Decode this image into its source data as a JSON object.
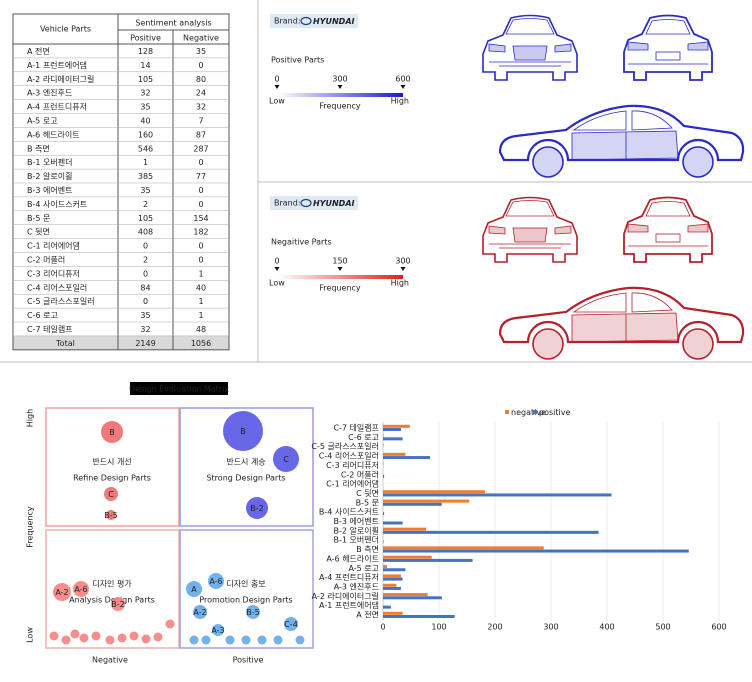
{
  "table": {
    "header": {
      "parts": "Vehicle Parts",
      "group": "Sentiment analysis",
      "positive": "Positive",
      "negative": "Negative"
    },
    "rows": [
      [
        "A 전면",
        128,
        35
      ],
      [
        "A-1 프런트에어댐",
        14,
        0
      ],
      [
        "A-2 라디에이터그릴",
        105,
        80
      ],
      [
        "A-3 엔진후드",
        32,
        24
      ],
      [
        "A-4 프런트디퓨저",
        35,
        32
      ],
      [
        "A-5 로고",
        40,
        7
      ],
      [
        "A-6 헤드라이트",
        160,
        87
      ],
      [
        "B 측면",
        546,
        287
      ],
      [
        "B-1 오버펜더",
        1,
        0
      ],
      [
        "B-2 알로이휠",
        385,
        77
      ],
      [
        "B-3 에어벤트",
        35,
        0
      ],
      [
        "B-4 사이드스커트",
        2,
        0
      ],
      [
        "B-5 문",
        105,
        154
      ],
      [
        "C 뒷면",
        408,
        182
      ],
      [
        "C-1 리어에어댐",
        0,
        0
      ],
      [
        "C-2 머플러",
        2,
        0
      ],
      [
        "C-3 리어디퓨저",
        0,
        1
      ],
      [
        "C-4 리어스포일러",
        84,
        40
      ],
      [
        "C-5 글라스스포일러",
        0,
        1
      ],
      [
        "C-6 로고",
        35,
        1
      ],
      [
        "C-7 테일램프",
        32,
        48
      ]
    ],
    "total": [
      "Total",
      2149,
      1056
    ]
  },
  "panels": [
    {
      "brand": "Brand:",
      "logo": "HYUNDAI",
      "title": "Positive Parts",
      "ticks": [
        0,
        300,
        600
      ],
      "low": "Low",
      "high": "High",
      "axis": "Frequency"
    },
    {
      "brand": "Brand:",
      "logo": "HYUNDAI",
      "title": "Negaitive Parts",
      "ticks": [
        0,
        150,
        300
      ],
      "low": "Low",
      "high": "High",
      "axis": "Frequency"
    }
  ],
  "matrix": {
    "title": "Design Evaluation Matrix",
    "y_label": "Frequency",
    "y_high": "High",
    "y_low": "Low",
    "x_negative": "Negative",
    "x_positive": "Positive",
    "quadrants": [
      {
        "korean": "반드시 개선",
        "english": "Refine Design Parts",
        "bubbles": [
          "B",
          "C",
          "B-5"
        ]
      },
      {
        "korean": "반드시 계승",
        "english": "Strong Design Parts",
        "bubbles": [
          "B",
          "C",
          "B-2"
        ]
      },
      {
        "korean": "디자인 평가",
        "english": "Analysis Design Parts",
        "bubbles": [
          "A-2",
          "A-6",
          "B-2"
        ]
      },
      {
        "korean": "디자인 홍보",
        "english": "Promotion Design Parts",
        "bubbles": [
          "A",
          "A-6",
          "A-2",
          "B-5",
          "A-3",
          "C-4"
        ]
      }
    ]
  },
  "chart_data": {
    "type": "bar",
    "orientation": "horizontal",
    "categories": [
      "A 전면",
      "A-1 프런트에어댐",
      "A-2 라디에이터그릴",
      "A-3 엔진후드",
      "A-4 프런트디퓨저",
      "A-5 로고",
      "A-6 헤드라이트",
      "B 측면",
      "B-1 오버펜더",
      "B-2 알로이휠",
      "B-3 에어벤트",
      "B-4 사이드스커트",
      "B-5 문",
      "C 뒷면",
      "C-1 리어에어댐",
      "C-2 머플러",
      "C-3 리어디퓨저",
      "C-4 리어스포일러",
      "C-5 글라스스포일러",
      "C-6 로고",
      "C-7 테일램프"
    ],
    "series": [
      {
        "name": "negative",
        "color": "#ed7d31",
        "values": [
          35,
          0,
          80,
          24,
          32,
          7,
          87,
          287,
          0,
          77,
          0,
          0,
          154,
          182,
          0,
          0,
          1,
          40,
          1,
          1,
          48
        ]
      },
      {
        "name": "positive",
        "color": "#4472c4",
        "values": [
          128,
          14,
          105,
          32,
          35,
          40,
          160,
          546,
          1,
          385,
          35,
          2,
          105,
          408,
          0,
          2,
          0,
          84,
          0,
          35,
          32
        ]
      }
    ],
    "xlim": [
      0,
      600
    ],
    "xticks": [
      0,
      100,
      200,
      300,
      400,
      500,
      600
    ],
    "legend": "top"
  }
}
